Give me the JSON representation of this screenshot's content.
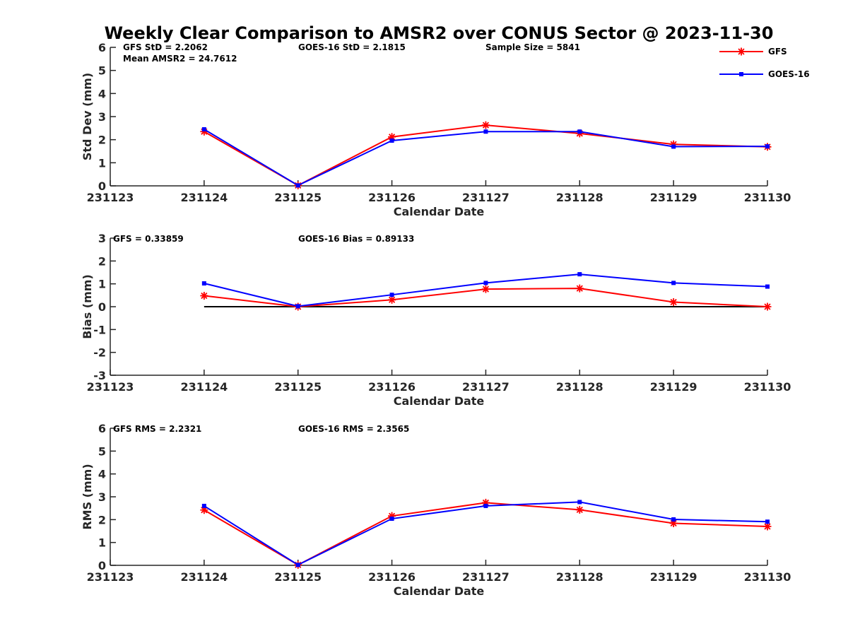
{
  "figure_title": "Weekly Clear Comparison to AMSR2 over CONUS Sector @ 2023-11-30",
  "colors": {
    "GFS": "#ff0000",
    "GOES-16": "#0000ff",
    "zero_line": "#000000"
  },
  "legend": {
    "placement": "top-right",
    "entries": [
      "GFS",
      "GOES-16"
    ]
  },
  "chart_data": [
    {
      "type": "line",
      "title": "",
      "xlabel": "Calendar Date",
      "ylabel": "Std Dev (mm)",
      "ylim": [
        0,
        6
      ],
      "yticks": [
        "0",
        "1",
        "2",
        "3",
        "4",
        "5",
        "6"
      ],
      "categories": [
        "231123",
        "231124",
        "231125",
        "231126",
        "231127",
        "231128",
        "231129",
        "231130"
      ],
      "grid": false,
      "series": [
        {
          "name": "GFS",
          "marker": "star",
          "values": [
            null,
            2.35,
            0.02,
            2.12,
            2.63,
            2.27,
            1.8,
            1.69
          ]
        },
        {
          "name": "GOES-16",
          "marker": "square",
          "values": [
            null,
            2.45,
            0.02,
            1.96,
            2.35,
            2.35,
            1.7,
            1.71
          ]
        }
      ],
      "annotations": [
        {
          "text": "GFS StD = 2.2062"
        },
        {
          "text": "Mean AMSR2 = 24.7612"
        },
        {
          "text": "GOES-16 StD = 2.1815"
        },
        {
          "text": "Sample Size = 5841"
        }
      ]
    },
    {
      "type": "line",
      "title": "",
      "xlabel": "Calendar Date",
      "ylabel": "Bias (mm)",
      "ylim": [
        -3,
        3
      ],
      "yticks": [
        "-3",
        "-2",
        "-1",
        "0",
        "1",
        "2",
        "3"
      ],
      "categories": [
        "231123",
        "231124",
        "231125",
        "231126",
        "231127",
        "231128",
        "231129",
        "231130"
      ],
      "grid": false,
      "zero_line": true,
      "series": [
        {
          "name": "GFS",
          "marker": "star",
          "values": [
            null,
            0.48,
            0.0,
            0.3,
            0.77,
            0.8,
            0.2,
            0.0
          ]
        },
        {
          "name": "GOES-16",
          "marker": "square",
          "values": [
            null,
            1.02,
            0.02,
            0.52,
            1.04,
            1.42,
            1.04,
            0.88
          ]
        }
      ],
      "annotations": [
        {
          "text": "GFS = 0.33859"
        },
        {
          "text": "GOES-16 Bias  = 0.89133"
        }
      ]
    },
    {
      "type": "line",
      "title": "",
      "xlabel": "Calendar Date",
      "ylabel": "RMS (mm)",
      "ylim": [
        0,
        6
      ],
      "yticks": [
        "0",
        "1",
        "2",
        "3",
        "4",
        "5",
        "6"
      ],
      "categories": [
        "231123",
        "231124",
        "231125",
        "231126",
        "231127",
        "231128",
        "231129",
        "231130"
      ],
      "grid": false,
      "series": [
        {
          "name": "GFS",
          "marker": "star",
          "values": [
            null,
            2.42,
            0.02,
            2.16,
            2.74,
            2.43,
            1.84,
            1.7
          ]
        },
        {
          "name": "GOES-16",
          "marker": "square",
          "values": [
            null,
            2.6,
            0.02,
            2.04,
            2.6,
            2.77,
            2.01,
            1.91
          ]
        }
      ],
      "annotations": [
        {
          "text": "GFS RMS = 2.2321"
        },
        {
          "text": "GOES-16 RMS = 2.3565"
        }
      ]
    }
  ]
}
